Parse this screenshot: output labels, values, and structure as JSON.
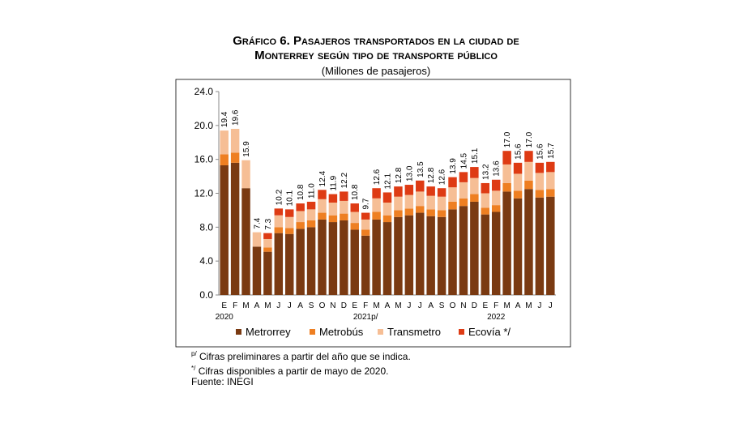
{
  "title_line1": "Gráfico 6. Pasajeros transportados en la ciudad de",
  "title_line2": "Monterrey según tipo de transporte público",
  "subtitle": "(Millones de pasajeros)",
  "notes": {
    "note1_mark": "p/",
    "note1_text": "Cifras preliminares a partir del año que se indica.",
    "note2_mark": "*/",
    "note2_text": "Cifras disponibles a partir de mayo de 2020.",
    "source": "Fuente: INEGI"
  },
  "chart_data": {
    "type": "bar",
    "stacked": true,
    "categories": [
      "E",
      "F",
      "M",
      "A",
      "M",
      "J",
      "J",
      "A",
      "S",
      "O",
      "N",
      "D",
      "E",
      "F",
      "M",
      "A",
      "M",
      "J",
      "J",
      "A",
      "S",
      "O",
      "N",
      "D",
      "E",
      "F",
      "M",
      "A",
      "M",
      "J",
      "J"
    ],
    "year_labels": [
      {
        "index": 0,
        "label": "2020"
      },
      {
        "index": 13,
        "label": "2021p/"
      },
      {
        "index": 25,
        "label": "2022"
      }
    ],
    "totals_labels": [
      "19.4",
      "19.6",
      "15.9",
      "7.4",
      "7.3",
      "10.2",
      "10.1",
      "10.8",
      "11.0",
      "12.4",
      "11.9",
      "12.2",
      "10.8",
      "9.7",
      "12.6",
      "12.1",
      "12.8",
      "13.0",
      "13.5",
      "12.8",
      "12.6",
      "13.9",
      "14.5",
      "15.1",
      "13.2",
      "13.6",
      "17.0",
      "15.6",
      "17.0",
      "15.6",
      "15.7"
    ],
    "series": [
      {
        "name": "Metrorrey",
        "color": "#7a3a12",
        "values": [
          15.3,
          15.6,
          12.6,
          5.7,
          5.1,
          7.3,
          7.2,
          7.8,
          8.0,
          8.9,
          8.6,
          8.8,
          7.7,
          7.0,
          8.9,
          8.6,
          9.2,
          9.4,
          9.7,
          9.3,
          9.2,
          10.1,
          10.5,
          11.0,
          9.5,
          9.8,
          12.2,
          11.4,
          12.5,
          11.5,
          11.6
        ]
      },
      {
        "name": "Metrobús",
        "color": "#ee7f22",
        "values": [
          1.3,
          1.2,
          0.0,
          0.0,
          0.5,
          0.7,
          0.7,
          0.8,
          0.8,
          0.8,
          0.8,
          0.8,
          0.8,
          0.7,
          0.9,
          0.8,
          0.8,
          0.8,
          0.8,
          0.8,
          0.8,
          0.9,
          0.9,
          0.9,
          0.8,
          0.8,
          1.0,
          0.9,
          1.0,
          0.9,
          0.9
        ]
      },
      {
        "name": "Transmetro",
        "color": "#f6be95",
        "values": [
          2.8,
          2.8,
          3.3,
          1.7,
          1.0,
          1.4,
          1.3,
          1.3,
          1.3,
          1.6,
          1.5,
          1.5,
          1.3,
          1.2,
          1.6,
          1.5,
          1.6,
          1.6,
          1.7,
          1.6,
          1.6,
          1.7,
          1.9,
          1.9,
          1.7,
          1.7,
          2.2,
          2.0,
          2.2,
          2.0,
          2.0
        ]
      },
      {
        "name": "Ecovía */",
        "color": "#de3b14",
        "values": [
          0.0,
          0.0,
          0.0,
          0.0,
          0.7,
          0.8,
          0.9,
          0.9,
          0.9,
          1.1,
          1.0,
          1.1,
          1.0,
          0.8,
          1.2,
          1.2,
          1.2,
          1.2,
          1.3,
          1.1,
          1.0,
          1.2,
          1.2,
          1.3,
          1.2,
          1.3,
          1.6,
          1.3,
          1.3,
          1.2,
          1.2
        ]
      }
    ],
    "ylim": [
      0,
      24
    ],
    "yticks": [
      "0.0",
      "4.0",
      "8.0",
      "12.0",
      "16.0",
      "20.0",
      "24.0"
    ],
    "legend_position": "bottom",
    "grid": false
  }
}
